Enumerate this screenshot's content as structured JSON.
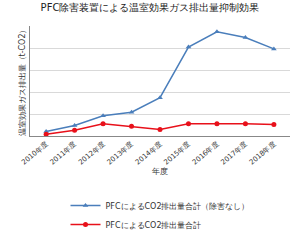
{
  "chart_data": {
    "type": "line",
    "title": "PFC除害装置による温室効果ガス排出量抑制効果",
    "x_label": "年度",
    "y_label": "温室効果ガス排出量（t-CO2）",
    "categories": [
      "2010年度",
      "2011年度",
      "2012年度",
      "2013年度",
      "2014年度",
      "2015年度",
      "2016年度",
      "2017年度",
      "2018年度"
    ],
    "series": [
      {
        "name": "PFCによるCO2排出量合計（除害なし）",
        "color": "#4a7ebb",
        "marker": "triangle-up",
        "values": [
          100,
          240,
          460,
          540,
          870,
          2020,
          2370,
          2240,
          1980
        ]
      },
      {
        "name": "PFCによるCO2排出量合計",
        "color": "#e8101a",
        "marker": "circle",
        "values": [
          40,
          130,
          280,
          220,
          150,
          280,
          280,
          280,
          260
        ]
      }
    ],
    "ylim": [
      0,
      2500
    ],
    "yticks": [
      0,
      500,
      1000,
      1500,
      2000,
      2500
    ],
    "grid": true,
    "legend": "bottom",
    "tick_labels": "x"
  }
}
